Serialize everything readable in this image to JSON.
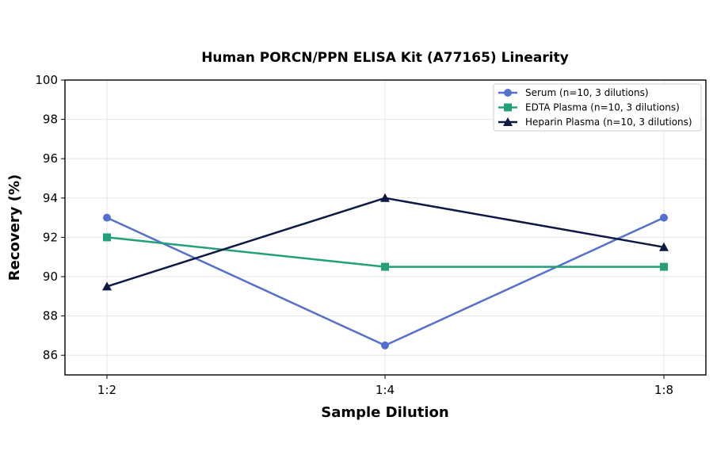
{
  "chart_data": {
    "type": "line",
    "title": "Human PORCN/PPN ELISA Kit (A77165) Linearity",
    "xlabel": "Sample Dilution",
    "ylabel": "Recovery (%)",
    "categories": [
      "1:2",
      "1:4",
      "1:8"
    ],
    "ylim": [
      85,
      100
    ],
    "yticks": [
      86,
      88,
      90,
      92,
      94,
      96,
      98,
      100
    ],
    "grid": true,
    "legend_position": "top-right",
    "series": [
      {
        "name": "Serum (n=10, 3 dilutions)",
        "values": [
          93,
          86.5,
          93
        ],
        "color": "#5470cf",
        "marker": "circle"
      },
      {
        "name": "EDTA Plasma (n=10, 3 dilutions)",
        "values": [
          92,
          90.5,
          90.5
        ],
        "color": "#23a07a",
        "marker": "square"
      },
      {
        "name": "Heparin Plasma (n=10, 3 dilutions)",
        "values": [
          89.5,
          94,
          91.5
        ],
        "color": "#0d1a45",
        "marker": "triangle"
      }
    ]
  }
}
